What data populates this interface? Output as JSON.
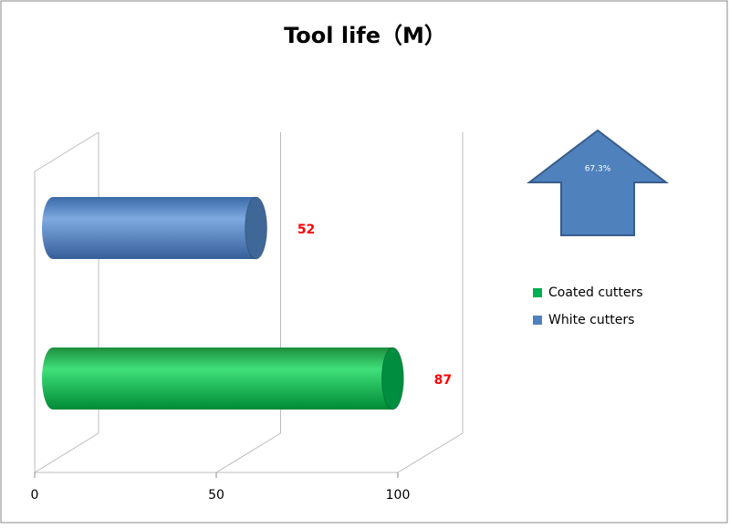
{
  "chart_data": {
    "type": "bar",
    "orientation": "horizontal",
    "title": "Tool life（M）",
    "series": [
      {
        "name": "Coated cutters",
        "color": "#00b050",
        "values": [
          87
        ]
      },
      {
        "name": "White cutters",
        "color": "#4f81bd",
        "values": [
          52
        ]
      }
    ],
    "xlim": [
      0,
      100
    ],
    "xticks": [
      0,
      50,
      100
    ],
    "grid": true,
    "annotation": "67.3%",
    "legend": "right"
  }
}
